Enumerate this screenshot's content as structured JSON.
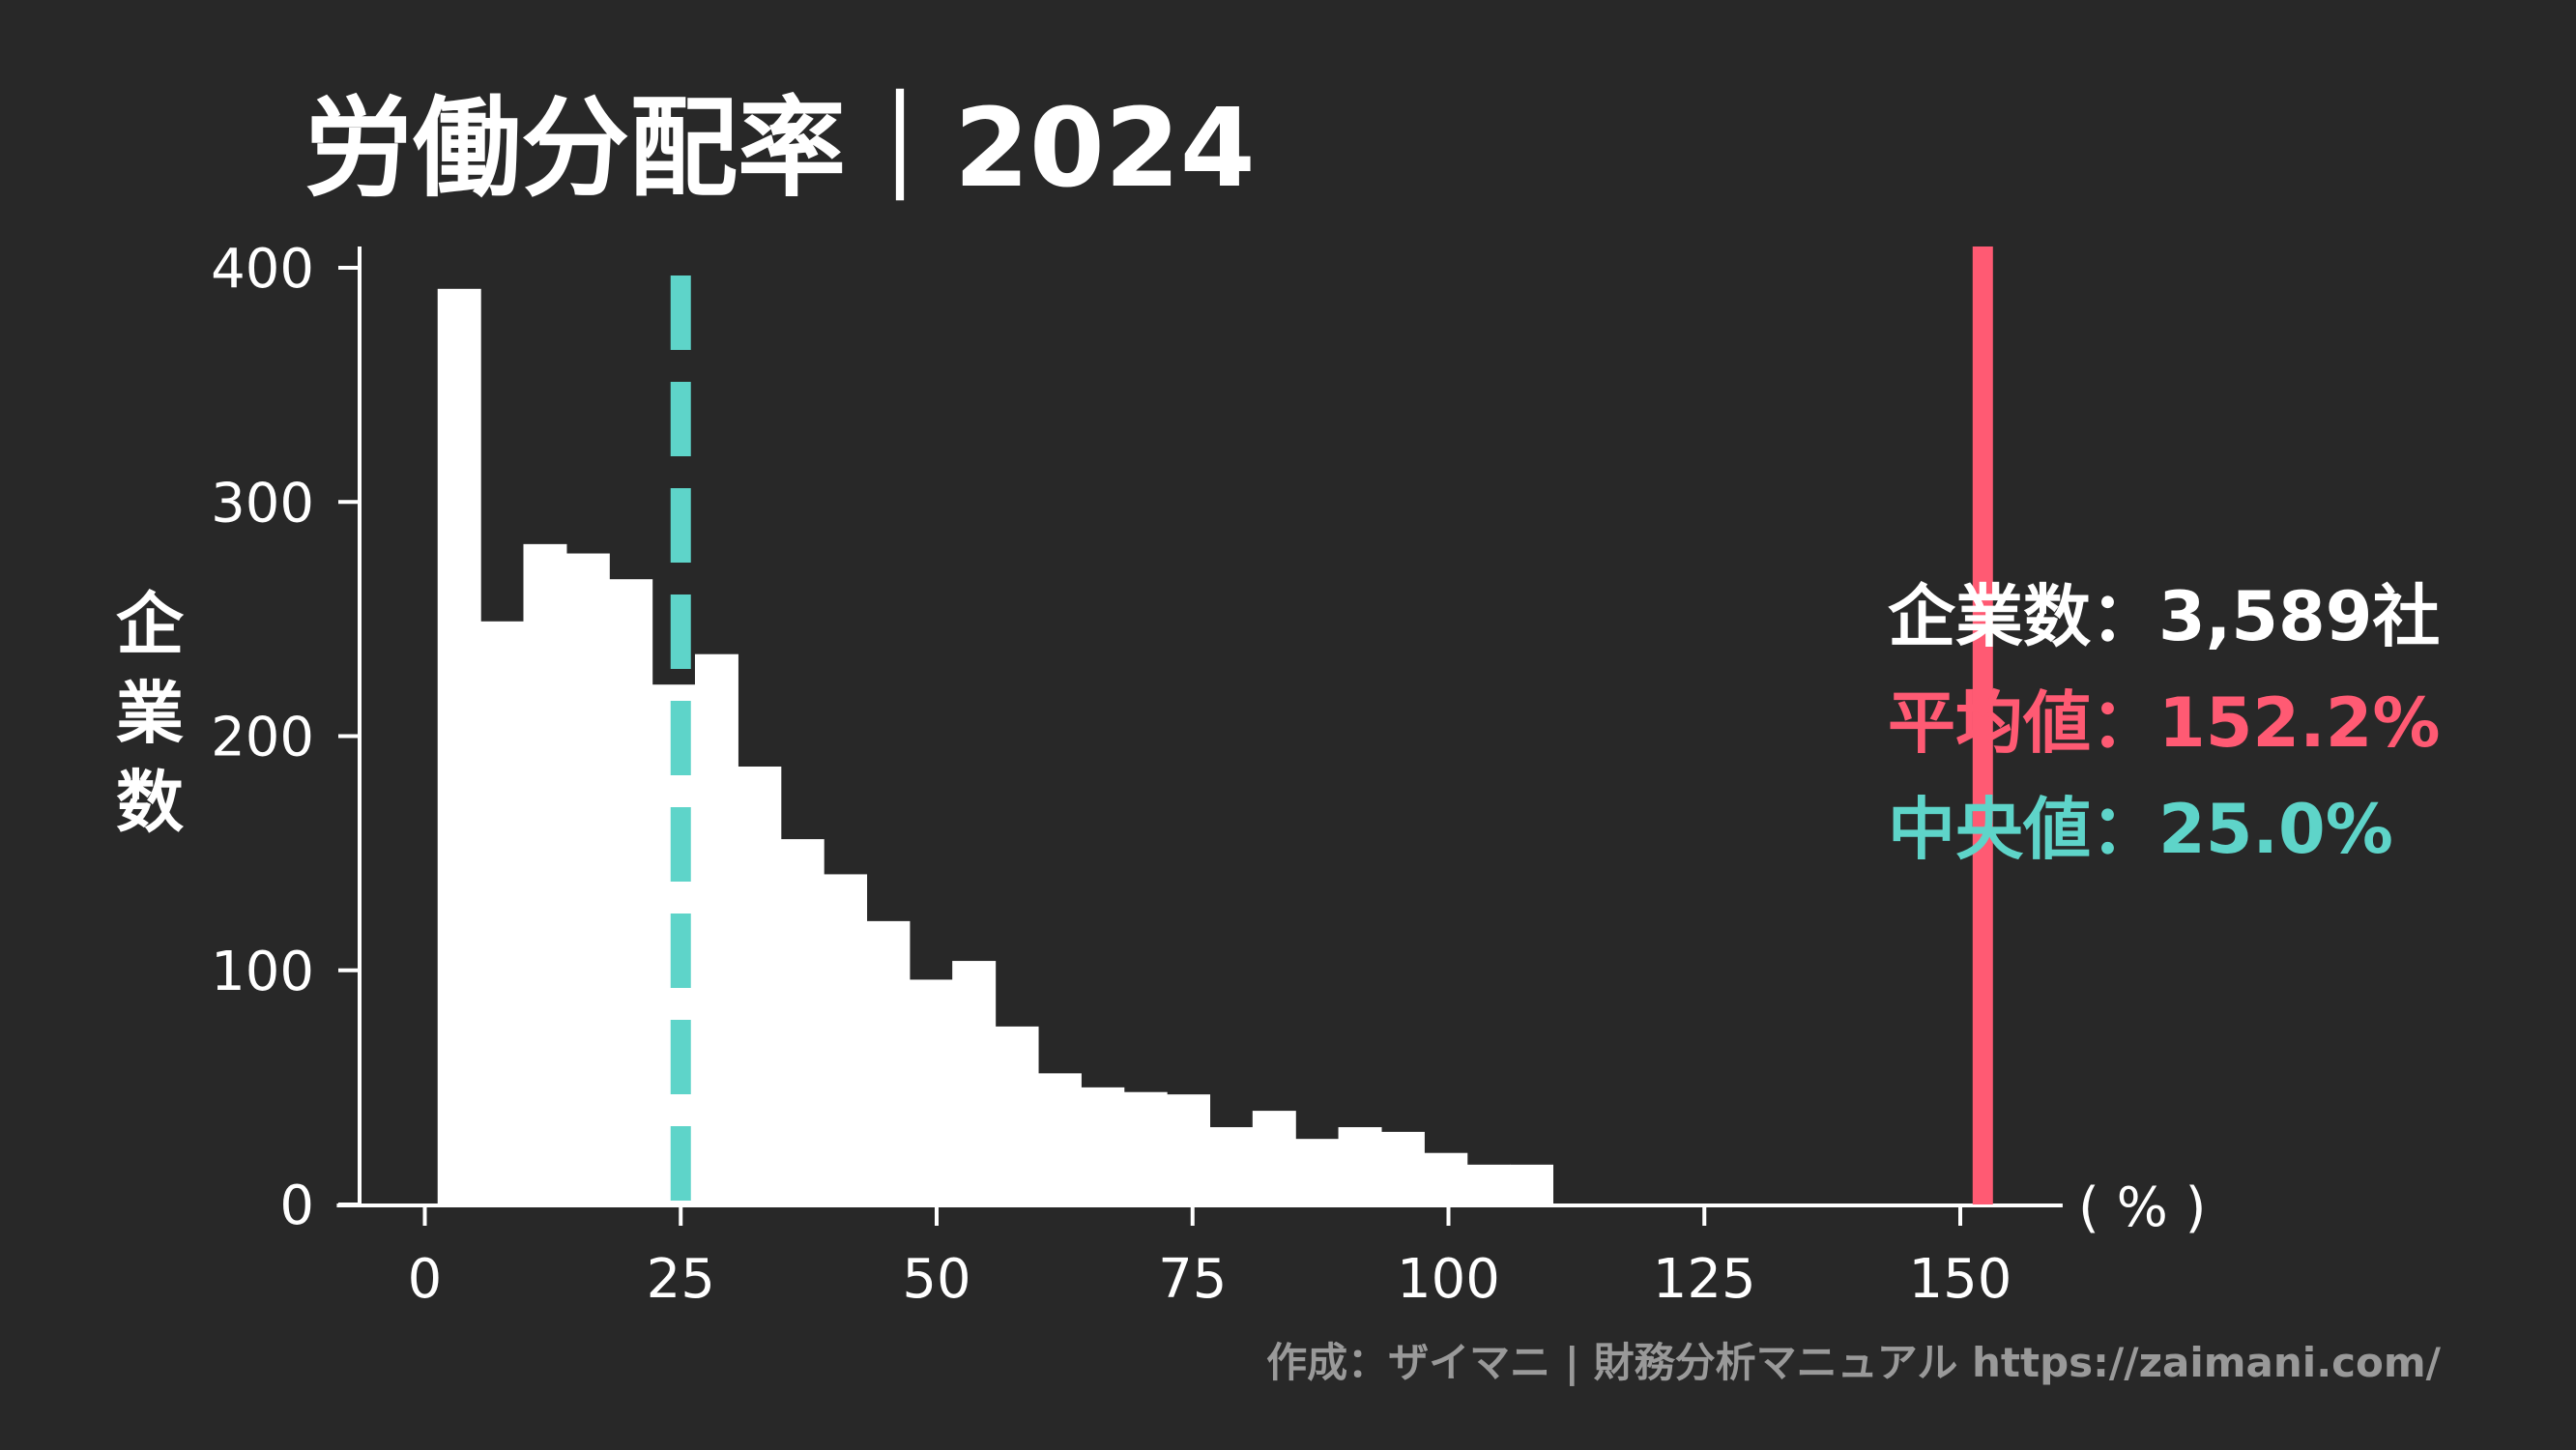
{
  "chart_data": {
    "type": "bar",
    "title": "労働分配率｜2024",
    "xlabel": "( % )",
    "ylabel": "企業数",
    "xlim": [
      -8.6,
      160
    ],
    "ylim": [
      0,
      400
    ],
    "x_ticks": [
      "0",
      "25",
      "50",
      "75",
      "100",
      "125",
      "150"
    ],
    "y_ticks": [
      "0",
      "100",
      "200",
      "300",
      "400"
    ],
    "bin_start": 1.25,
    "bin_width": 4.19,
    "values": [
      391,
      249,
      282,
      278,
      267,
      222,
      235,
      187,
      156,
      141,
      121,
      96,
      104,
      76,
      56,
      50,
      48,
      47,
      33,
      40,
      28,
      33,
      31,
      22,
      17,
      17
    ],
    "mean": 152.2,
    "median": 25.0,
    "grid": false
  },
  "legend": {
    "count_label": "企業数",
    "count_value": "3,589社",
    "mean_label": "平均値",
    "mean_value": "152.2%",
    "median_label": "中央値",
    "median_value": "25.0%",
    "separator": "："
  },
  "footer": "作成：ザイマニ | 財務分析マニュアル https://zaimani.com/",
  "colors": {
    "background": "#282828",
    "bars": "#ffffff",
    "mean": "#ff5a73",
    "median": "#5ed4c9",
    "footer": "#999999"
  }
}
